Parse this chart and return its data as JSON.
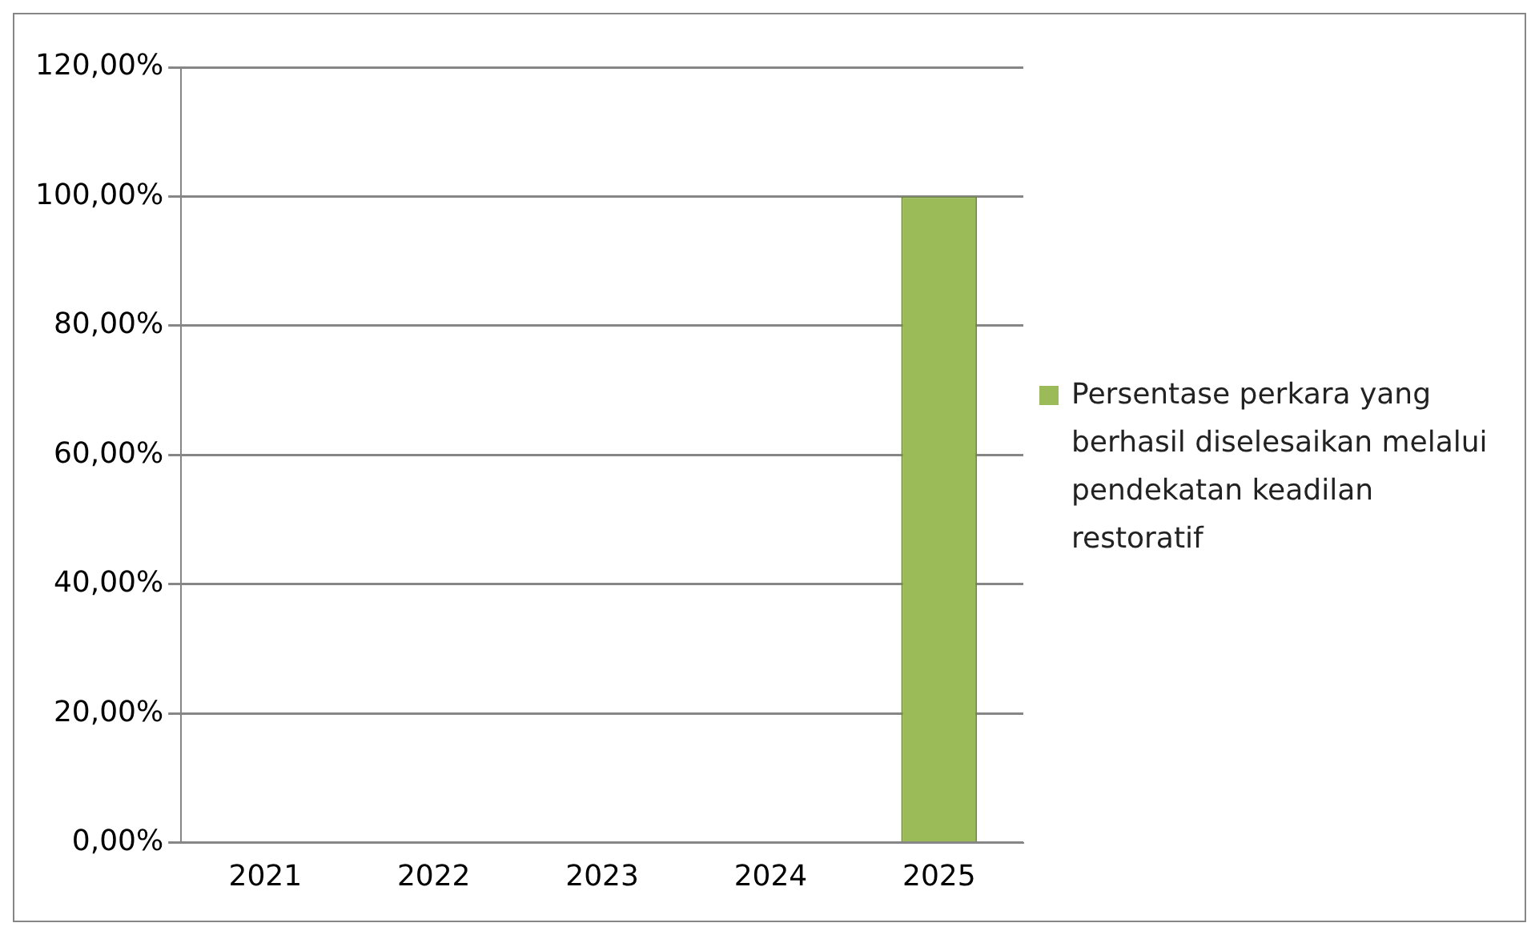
{
  "chart_data": {
    "type": "bar",
    "categories": [
      "2021",
      "2022",
      "2023",
      "2024",
      "2025"
    ],
    "series": [
      {
        "name": "Persentase perkara yang berhasil diselesaikan melalui pendekatan keadilan restoratif",
        "color": "#9bbb59",
        "values": [
          0,
          0,
          0,
          0,
          100
        ]
      }
    ],
    "ylim": [
      0,
      120
    ],
    "yticks": [
      {
        "value": 0,
        "label": "0,00%"
      },
      {
        "value": 20,
        "label": "20,00%"
      },
      {
        "value": 40,
        "label": "40,00%"
      },
      {
        "value": 60,
        "label": "60,00%"
      },
      {
        "value": 80,
        "label": "80,00%"
      },
      {
        "value": 100,
        "label": "100,00%"
      },
      {
        "value": 120,
        "label": "120,00%"
      }
    ],
    "grid": "y",
    "legend": "right"
  }
}
